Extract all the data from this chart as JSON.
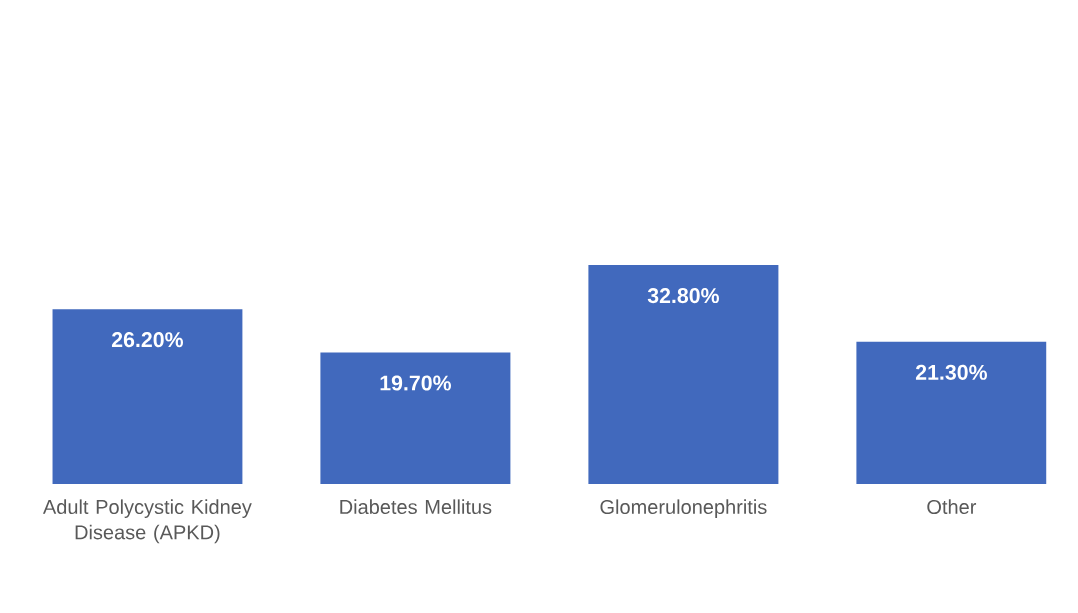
{
  "chart_data": {
    "type": "bar",
    "categories": [
      "Adult Polycystic Kidney Disease (APKD)",
      "Diabetes Mellitus",
      "Glomerulonephritis",
      "Other"
    ],
    "values": [
      26.2,
      19.7,
      32.8,
      21.3
    ],
    "value_labels": [
      "26.20%",
      "19.70%",
      "32.80%",
      "21.30%"
    ],
    "color": "#4169bd"
  }
}
